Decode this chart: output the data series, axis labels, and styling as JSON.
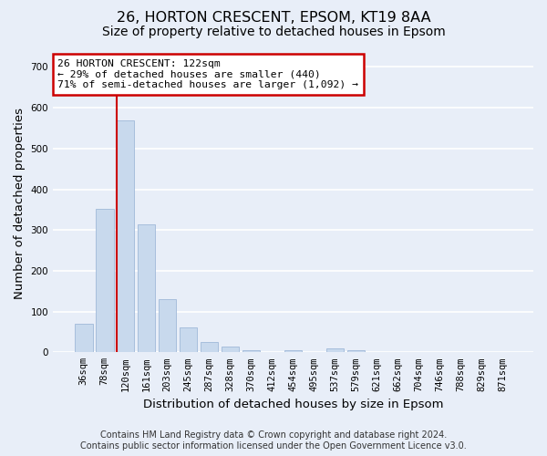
{
  "title_line1": "26, HORTON CRESCENT, EPSOM, KT19 8AA",
  "title_line2": "Size of property relative to detached houses in Epsom",
  "xlabel": "Distribution of detached houses by size in Epsom",
  "ylabel": "Number of detached properties",
  "footer_line1": "Contains HM Land Registry data © Crown copyright and database right 2024.",
  "footer_line2": "Contains public sector information licensed under the Open Government Licence v3.0.",
  "bar_labels": [
    "36sqm",
    "78sqm",
    "120sqm",
    "161sqm",
    "203sqm",
    "245sqm",
    "287sqm",
    "328sqm",
    "370sqm",
    "412sqm",
    "454sqm",
    "495sqm",
    "537sqm",
    "579sqm",
    "621sqm",
    "662sqm",
    "704sqm",
    "746sqm",
    "788sqm",
    "829sqm",
    "871sqm"
  ],
  "bar_values": [
    70,
    352,
    568,
    313,
    130,
    60,
    25,
    13,
    6,
    0,
    6,
    0,
    10,
    5,
    0,
    0,
    0,
    0,
    0,
    0,
    0
  ],
  "bar_color": "#c8d9ed",
  "bar_edge_color": "#a0b8d8",
  "vline_x": 1.575,
  "vline_color": "#cc0000",
  "annotation_text": "26 HORTON CRESCENT: 122sqm\n← 29% of detached houses are smaller (440)\n71% of semi-detached houses are larger (1,092) →",
  "annotation_box_color": "#ffffff",
  "annotation_box_edge": "#cc0000",
  "ylim": [
    0,
    730
  ],
  "yticks": [
    0,
    100,
    200,
    300,
    400,
    500,
    600,
    700
  ],
  "bg_color": "#e8eef8",
  "plot_bg_color": "#e8eef8",
  "grid_color": "#ffffff",
  "title_fontsize": 11.5,
  "subtitle_fontsize": 10,
  "axis_label_fontsize": 9.5,
  "tick_fontsize": 7.5,
  "footer_fontsize": 7.0
}
